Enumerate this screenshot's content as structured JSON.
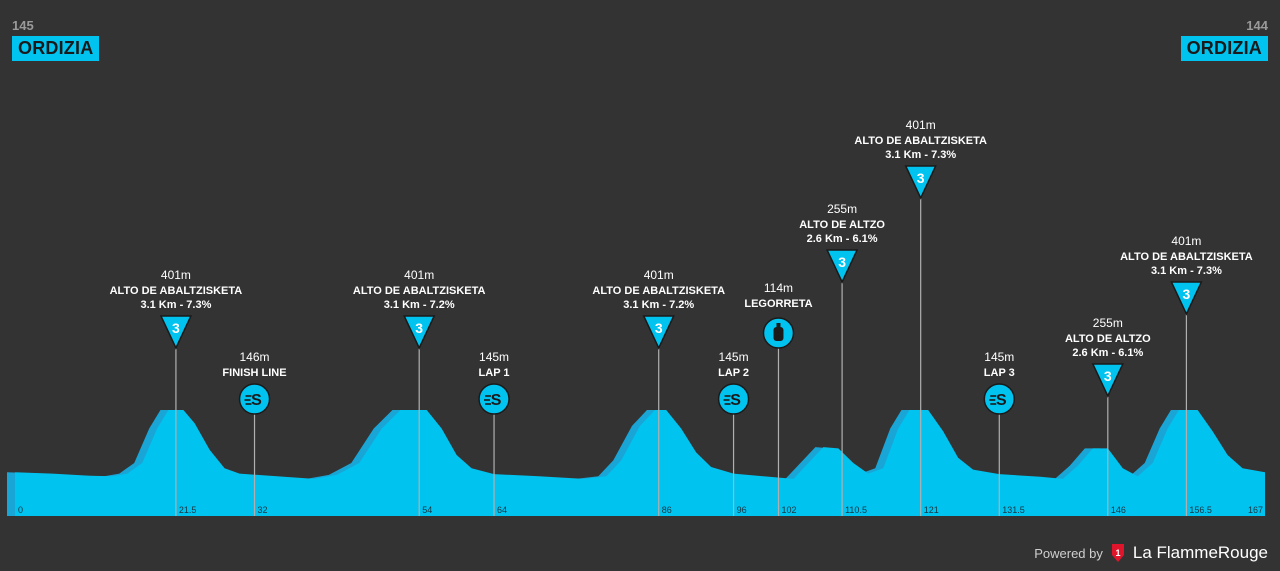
{
  "header": {
    "start_km": "145",
    "start_town": "ORDIZIA",
    "end_km": "144",
    "end_town": "ORDIZIA"
  },
  "footer": {
    "powered_by": "Powered by",
    "brand": "La FlammeRouge",
    "brand_logo_text": "1"
  },
  "colors": {
    "background": "#333333",
    "profile_fill": "#00c3f0",
    "profile_shade": "#19a6d6",
    "marker_line": "#b0b0b0",
    "text": "#ffffff"
  },
  "chart_data": {
    "type": "area",
    "x_unit": "km",
    "y_unit": "m",
    "xlim": [
      0,
      167
    ],
    "profile": [
      [
        0,
        165
      ],
      [
        5,
        160
      ],
      [
        10,
        152
      ],
      [
        13,
        150
      ],
      [
        15,
        160
      ],
      [
        17,
        200
      ],
      [
        19,
        330
      ],
      [
        20.5,
        400
      ],
      [
        22.5,
        400
      ],
      [
        24,
        350
      ],
      [
        26,
        250
      ],
      [
        28,
        180
      ],
      [
        30,
        160
      ],
      [
        35,
        150
      ],
      [
        40,
        140
      ],
      [
        43,
        155
      ],
      [
        46,
        200
      ],
      [
        49,
        330
      ],
      [
        51.5,
        400
      ],
      [
        55,
        400
      ],
      [
        57,
        330
      ],
      [
        59,
        230
      ],
      [
        61,
        180
      ],
      [
        64,
        158
      ],
      [
        70,
        150
      ],
      [
        76,
        140
      ],
      [
        79,
        150
      ],
      [
        81,
        210
      ],
      [
        83.5,
        340
      ],
      [
        85.5,
        400
      ],
      [
        87,
        400
      ],
      [
        89,
        330
      ],
      [
        91,
        240
      ],
      [
        93,
        185
      ],
      [
        96,
        160
      ],
      [
        100,
        150
      ],
      [
        104,
        140
      ],
      [
        106,
        200
      ],
      [
        108,
        260
      ],
      [
        110,
        255
      ],
      [
        112,
        200
      ],
      [
        114,
        160
      ],
      [
        116,
        180
      ],
      [
        118,
        330
      ],
      [
        119.5,
        400
      ],
      [
        122,
        400
      ],
      [
        124,
        320
      ],
      [
        126,
        220
      ],
      [
        128,
        175
      ],
      [
        131.5,
        158
      ],
      [
        137,
        148
      ],
      [
        140,
        140
      ],
      [
        142,
        190
      ],
      [
        144,
        255
      ],
      [
        146,
        255
      ],
      [
        148,
        180
      ],
      [
        150,
        150
      ],
      [
        152,
        200
      ],
      [
        154,
        330
      ],
      [
        155.5,
        400
      ],
      [
        158,
        400
      ],
      [
        160,
        320
      ],
      [
        162,
        230
      ],
      [
        164,
        180
      ],
      [
        167,
        165
      ]
    ],
    "climbs": [
      {
        "name": "ALTO DE ABALTZISKETA",
        "alt": "401m",
        "stats": "3.1 Km - 7.3%",
        "category": "3",
        "km": 21.5
      },
      {
        "name": "ALTO DE ABALTZISKETA",
        "alt": "401m",
        "stats": "3.1 Km - 7.2%",
        "category": "3",
        "km": 54
      },
      {
        "name": "ALTO DE ABALTZISKETA",
        "alt": "401m",
        "stats": "3.1 Km - 7.2%",
        "category": "3",
        "km": 86
      },
      {
        "name": "ALTO DE ALTZO",
        "alt": "255m",
        "stats": "2.6 Km - 6.1%",
        "category": "3",
        "km": 110.5
      },
      {
        "name": "ALTO DE ABALTZISKETA",
        "alt": "401m",
        "stats": "3.1 Km - 7.3%",
        "category": "3",
        "km": 121
      },
      {
        "name": "ALTO DE ALTZO",
        "alt": "255m",
        "stats": "2.6 Km - 6.1%",
        "category": "3",
        "km": 146
      },
      {
        "name": "ALTO DE ABALTZISKETA",
        "alt": "401m",
        "stats": "3.1 Km - 7.3%",
        "category": "3",
        "km": 156.5
      }
    ],
    "sprints": [
      {
        "name": "FINISH LINE",
        "alt": "146m",
        "km": 32
      },
      {
        "name": "LAP 1",
        "alt": "145m",
        "km": 64
      },
      {
        "name": "LAP 2",
        "alt": "145m",
        "km": 96
      },
      {
        "name": "LAP 3",
        "alt": "145m",
        "km": 131.5
      }
    ],
    "feed_zones": [
      {
        "name": "LEGORRETA",
        "alt": "114m",
        "km": 102
      }
    ],
    "x_ticks": [
      "0",
      "21.5",
      "32",
      "54",
      "64",
      "86",
      "96",
      "102",
      "110.5",
      "121",
      "131.5",
      "146",
      "156.5",
      "167"
    ]
  }
}
